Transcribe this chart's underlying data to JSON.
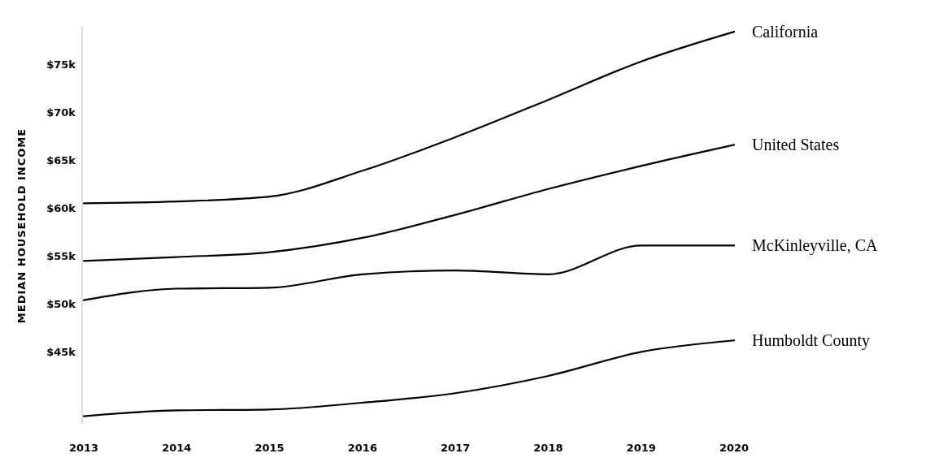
{
  "chart_data": {
    "type": "line",
    "ylabel": "MEDIAN HOUSEHOLD INCOME",
    "x": [
      2013,
      2014,
      2015,
      2016,
      2017,
      2018,
      2019,
      2020
    ],
    "xlim": [
      2013,
      2020
    ],
    "xticks": [
      2013,
      2014,
      2015,
      2016,
      2017,
      2018,
      2019,
      2020
    ],
    "ylim": [
      37.5,
      79
    ],
    "yticks": [
      {
        "value": 45,
        "label": "$45k"
      },
      {
        "value": 50,
        "label": "$50k"
      },
      {
        "value": 55,
        "label": "$55k"
      },
      {
        "value": 60,
        "label": "$60k"
      },
      {
        "value": 65,
        "label": "$65k"
      },
      {
        "value": 70,
        "label": "$70k"
      },
      {
        "value": 75,
        "label": "$75k"
      }
    ],
    "grid": false,
    "marker": "none",
    "line_style": "solid",
    "series": [
      {
        "name": "California",
        "color": "#000000",
        "values": [
          60.5,
          60.7,
          61.2,
          63.9,
          67.4,
          71.3,
          75.3,
          78.4
        ]
      },
      {
        "name": "United States",
        "color": "#000000",
        "values": [
          54.5,
          54.9,
          55.4,
          56.9,
          59.3,
          62.0,
          64.4,
          66.6
        ]
      },
      {
        "name": "McKinleyville, CA",
        "color": "#000000",
        "values": [
          50.4,
          51.6,
          51.7,
          53.1,
          53.5,
          53.1,
          56.1,
          56.1
        ]
      },
      {
        "name": "Humboldt County",
        "color": "#000000",
        "values": [
          38.3,
          38.9,
          39.0,
          39.7,
          40.7,
          42.5,
          45.0,
          46.2
        ]
      }
    ]
  }
}
